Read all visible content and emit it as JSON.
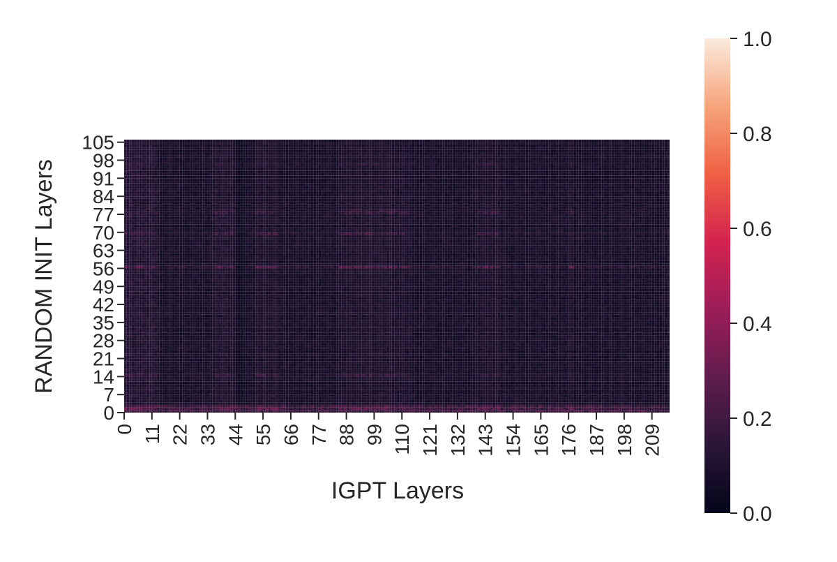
{
  "chart_data": {
    "type": "heatmap",
    "title": "",
    "xlabel": "IGPT Layers",
    "ylabel": "RANDOM INIT Layers",
    "x_count": 216,
    "y_count": 106,
    "x_ticks": [
      0,
      11,
      22,
      33,
      44,
      55,
      66,
      77,
      88,
      99,
      110,
      121,
      132,
      143,
      154,
      165,
      176,
      187,
      198,
      209
    ],
    "y_ticks": [
      0,
      7,
      14,
      21,
      28,
      35,
      42,
      49,
      56,
      63,
      70,
      77,
      84,
      91,
      98,
      105
    ],
    "x_tick_labels": [
      "0",
      "11",
      "22",
      "33",
      "44",
      "55",
      "66",
      "77",
      "88",
      "99",
      "110",
      "121",
      "132",
      "143",
      "154",
      "165",
      "176",
      "187",
      "198",
      "209"
    ],
    "y_tick_labels": [
      "0",
      "7",
      "14",
      "21",
      "28",
      "35",
      "42",
      "49",
      "56",
      "63",
      "70",
      "77",
      "84",
      "91",
      "98",
      "105"
    ],
    "colorbar": {
      "range": [
        0.0,
        1.0
      ],
      "ticks": [
        0.0,
        0.2,
        0.4,
        0.6,
        0.8,
        1.0
      ],
      "tick_labels": [
        "0.0",
        "0.2",
        "0.4",
        "0.6",
        "0.8",
        "1.0"
      ],
      "colormap": "rocket",
      "colors": [
        "#03051a",
        "#2a1636",
        "#601d4d",
        "#9c1d58",
        "#d3234f",
        "#f06043",
        "#f6a47b",
        "#faebdd"
      ]
    },
    "grid": true,
    "pattern": {
      "base_value": 0.08,
      "bright_rows": [
        {
          "y": 1,
          "value": 0.27
        },
        {
          "y": 2,
          "value": 0.21
        },
        {
          "y": 14,
          "value": 0.17
        },
        {
          "y": 56,
          "value": 0.24
        },
        {
          "y": 69,
          "value": 0.19
        },
        {
          "y": 77,
          "value": 0.16
        },
        {
          "y": 78,
          "value": 0.15
        },
        {
          "y": 96,
          "value": 0.14
        }
      ],
      "bright_columns": [
        {
          "x_range": [
            0,
            12
          ],
          "value": 0.13
        },
        {
          "x_range": [
            35,
            44
          ],
          "value": 0.11
        },
        {
          "x_range": [
            52,
            60
          ],
          "value": 0.1
        },
        {
          "x_range": [
            85,
            112
          ],
          "value": 0.1
        },
        {
          "x_range": [
            140,
            148
          ],
          "value": 0.1
        },
        {
          "x_range": [
            176,
            177
          ],
          "value": 0.1
        }
      ],
      "dark_columns": [
        {
          "x_range": [
            44,
            47
          ],
          "value": 0.03
        }
      ]
    }
  }
}
